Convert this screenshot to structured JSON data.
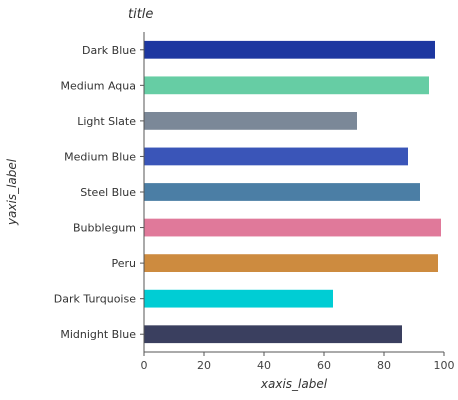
{
  "chart_data": {
    "type": "bar",
    "orientation": "horizontal",
    "title": "title",
    "xlabel": "xaxis_label",
    "ylabel": "yaxis_label",
    "xlim": [
      0,
      100
    ],
    "xticks": [
      0,
      20,
      40,
      60,
      80,
      100
    ],
    "grid": false,
    "categories": [
      "Midnight Blue",
      "Dark Turquoise",
      "Peru",
      "Bubblegum",
      "Steel Blue",
      "Medium Blue",
      "Light Slate",
      "Medium Aqua",
      "Dark Blue"
    ],
    "values": [
      86,
      63,
      98,
      99,
      92,
      88,
      71,
      95,
      97
    ],
    "colors": [
      "#3a3f5f",
      "#00cdd4",
      "#cd8b3f",
      "#e0799a",
      "#4b7ea5",
      "#3a55b8",
      "#7b8898",
      "#66cda4",
      "#1d37a0"
    ]
  }
}
